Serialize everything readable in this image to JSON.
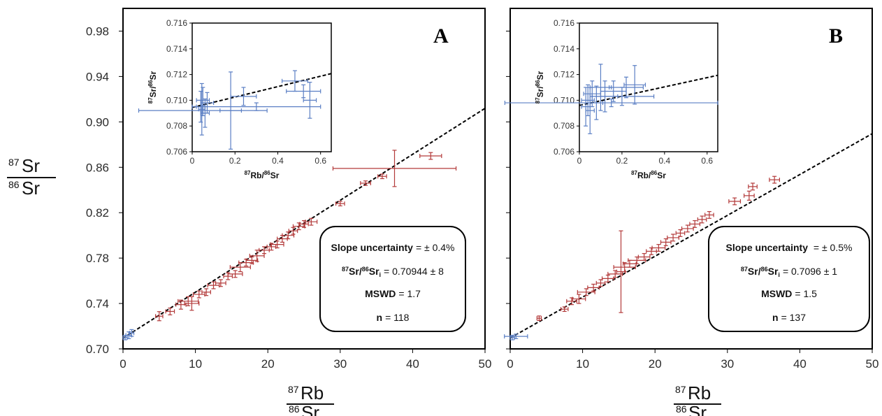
{
  "figure": {
    "y_axis_label": {
      "num_sup": "87",
      "num": "Sr",
      "den_sup": "86",
      "den": "Sr"
    },
    "x_axis_label": {
      "num_sup": "87",
      "num": "Rb",
      "den_sup": "86",
      "den": "Sr"
    },
    "inset_x_label": {
      "sup1": "87",
      "el1": "Rb/",
      "sup2": "86",
      "el2": "Sr"
    },
    "inset_y_label": {
      "sup1": "87",
      "el1": "Sr/",
      "sup2": "86",
      "el2": "Sr"
    }
  },
  "colors": {
    "main_points": "#b33a3a",
    "low_rb_points": "#5b7fc4",
    "isochron": "#000000"
  },
  "chart_data": [
    {
      "panel": "A",
      "type": "scatter",
      "x_ticks": [
        "0",
        "10",
        "20",
        "30",
        "40",
        "50"
      ],
      "y_ticks": [
        "0.70",
        "0.74",
        "0.78",
        "0.82",
        "0.86",
        "0.90",
        "0.94",
        "0.98"
      ],
      "xlim": [
        0,
        50
      ],
      "ylim": [
        0.7,
        1.0
      ],
      "isochron": {
        "intercept": 0.70944,
        "slope": 0.00405
      },
      "stats": {
        "slope_label": "Slope uncertainty",
        "slope_value": "= ± 0.4%",
        "ratio_main": "Sr/",
        "ratio_sup1": "87",
        "ratio_sup2": "86",
        "ratio_tail": "Sr",
        "ratio_sub": "i",
        "ratio_value": "= 0.70944 ± 8",
        "mswd_label": "MSWD",
        "mswd_value": "= 1.7",
        "n_label": "n",
        "n_value": "= 118"
      },
      "inset": {
        "x_ticks": [
          "0",
          "0.2",
          "0.4",
          "0.6"
        ],
        "y_ticks": [
          "0.706",
          "0.708",
          "0.710",
          "0.712",
          "0.714",
          "0.716"
        ],
        "xlim": [
          0,
          0.65
        ],
        "ylim": [
          0.706,
          0.716
        ],
        "isochron": {
          "intercept": 0.70944,
          "slope": 0.00405
        }
      },
      "series": [
        {
          "group": "high_rb",
          "points": [
            [
              5.0,
              0.7288,
              0.5,
              0.004
            ],
            [
              6.5,
              0.733,
              0.6,
              0.003
            ],
            [
              8.0,
              0.739,
              0.7,
              0.004
            ],
            [
              9.0,
              0.742,
              1.4,
              0.004
            ],
            [
              9.5,
              0.74,
              1.0,
              0.006
            ],
            [
              10.5,
              0.748,
              0.8,
              0.003
            ],
            [
              11.5,
              0.75,
              0.6,
              0.003
            ],
            [
              12.5,
              0.756,
              0.8,
              0.003
            ],
            [
              13.5,
              0.758,
              0.7,
              0.003
            ],
            [
              14.5,
              0.764,
              0.6,
              0.003
            ],
            [
              15.5,
              0.766,
              1.0,
              0.003
            ],
            [
              16.2,
              0.772,
              1.4,
              0.004
            ],
            [
              17.0,
              0.776,
              1.0,
              0.003
            ],
            [
              17.8,
              0.778,
              0.8,
              0.003
            ],
            [
              18.5,
              0.782,
              1.0,
              0.005
            ],
            [
              19.5,
              0.787,
              0.7,
              0.003
            ],
            [
              20.5,
              0.79,
              0.6,
              0.003
            ],
            [
              21.3,
              0.792,
              0.9,
              0.003
            ],
            [
              22.0,
              0.797,
              0.7,
              0.003
            ],
            [
              22.8,
              0.8,
              0.8,
              0.003
            ],
            [
              23.5,
              0.804,
              0.6,
              0.003
            ],
            [
              24.3,
              0.808,
              0.8,
              0.003
            ],
            [
              25.0,
              0.81,
              0.6,
              0.003
            ],
            [
              26.0,
              0.812,
              0.8,
              0.003
            ],
            [
              30.0,
              0.828,
              0.6,
              0.002
            ],
            [
              33.5,
              0.846,
              0.7,
              0.002
            ],
            [
              35.8,
              0.852,
              0.6,
              0.002
            ],
            [
              37.5,
              0.859,
              8.5,
              0.016
            ],
            [
              42.5,
              0.87,
              1.5,
              0.003
            ]
          ]
        },
        {
          "group": "low_rb",
          "points": [
            [
              0.3,
              0.71,
              0.3,
              0.002
            ],
            [
              0.8,
              0.712,
              0.4,
              0.003
            ],
            [
              1.2,
              0.714,
              0.3,
              0.003
            ]
          ]
        }
      ],
      "inset_points": [
        [
          0.04,
          0.7095,
          0.02,
          0.0012
        ],
        [
          0.05,
          0.71,
          0.03,
          0.001
        ],
        [
          0.06,
          0.709,
          0.02,
          0.0011
        ],
        [
          0.045,
          0.7093,
          0.015,
          0.002
        ],
        [
          0.07,
          0.7098,
          0.03,
          0.0008
        ],
        [
          0.05,
          0.7092,
          0.3,
          0.0004
        ],
        [
          0.18,
          0.7092,
          0.05,
          0.003
        ],
        [
          0.48,
          0.7115,
          0.06,
          0.0008
        ],
        [
          0.52,
          0.7107,
          0.08,
          0.0005
        ],
        [
          0.55,
          0.71,
          0.03,
          0.0014
        ],
        [
          0.3,
          0.7095,
          0.3,
          0.0003
        ],
        [
          0.24,
          0.7103,
          0.06,
          0.0007
        ]
      ]
    },
    {
      "panel": "B",
      "type": "scatter",
      "x_ticks": [
        "0",
        "10",
        "20",
        "30",
        "40",
        "50"
      ],
      "y_ticks": [],
      "xlim": [
        0,
        50
      ],
      "ylim": [
        0.7,
        1.0
      ],
      "isochron": {
        "intercept": 0.7096,
        "slope": 0.0036
      },
      "stats": {
        "slope_label": "Slope uncertainty",
        "slope_value": " = ± 0.5%",
        "ratio_main": "Sr/",
        "ratio_sup1": "87",
        "ratio_sup2": "86",
        "ratio_tail": "Sr",
        "ratio_sub": "i",
        "ratio_value": "= 0.7096 ± 1",
        "mswd_label": "MSWD",
        "mswd_value": "= 1.5",
        "n_label": "n",
        "n_value": "= 137"
      },
      "inset": {
        "x_ticks": [
          "0",
          "0.2",
          "0.4",
          "0.6"
        ],
        "y_ticks": [
          "0.706",
          "0.708",
          "0.710",
          "0.712",
          "0.714",
          "0.716"
        ],
        "xlim": [
          0,
          0.65
        ],
        "ylim": [
          0.706,
          0.716
        ],
        "isochron": {
          "intercept": 0.7096,
          "slope": 0.0036
        }
      },
      "series": [
        {
          "group": "high_rb",
          "points": [
            [
              4.0,
              0.727,
              0.3,
              0.002
            ],
            [
              7.5,
              0.735,
              0.5,
              0.002
            ],
            [
              8.5,
              0.742,
              0.7,
              0.003
            ],
            [
              9.5,
              0.744,
              0.9,
              0.004
            ],
            [
              10.5,
              0.75,
              1.2,
              0.003
            ],
            [
              11.5,
              0.754,
              0.8,
              0.003
            ],
            [
              12.5,
              0.758,
              0.6,
              0.003
            ],
            [
              13.5,
              0.762,
              0.8,
              0.003
            ],
            [
              14.5,
              0.766,
              1.0,
              0.003
            ],
            [
              15.3,
              0.768,
              0.6,
              0.036
            ],
            [
              15.8,
              0.772,
              1.5,
              0.004
            ],
            [
              16.5,
              0.775,
              0.9,
              0.003
            ],
            [
              17.5,
              0.778,
              1.2,
              0.003
            ],
            [
              18.5,
              0.781,
              0.8,
              0.003
            ],
            [
              19.5,
              0.786,
              0.7,
              0.003
            ],
            [
              20.5,
              0.789,
              0.9,
              0.003
            ],
            [
              21.5,
              0.794,
              0.7,
              0.003
            ],
            [
              22.5,
              0.798,
              0.8,
              0.003
            ],
            [
              23.5,
              0.802,
              0.6,
              0.003
            ],
            [
              24.5,
              0.806,
              0.8,
              0.003
            ],
            [
              25.5,
              0.81,
              0.7,
              0.003
            ],
            [
              26.5,
              0.814,
              0.6,
              0.003
            ],
            [
              27.5,
              0.818,
              0.6,
              0.003
            ],
            [
              31.0,
              0.83,
              0.8,
              0.003
            ],
            [
              33.0,
              0.835,
              0.7,
              0.004
            ],
            [
              33.5,
              0.843,
              0.6,
              0.003
            ],
            [
              36.5,
              0.849,
              0.7,
              0.003
            ]
          ]
        },
        {
          "group": "low_rb",
          "points": [
            [
              0.3,
              0.71,
              0.3,
              0.002
            ],
            [
              0.8,
              0.711,
              1.6,
              0.002
            ]
          ]
        }
      ],
      "inset_points": [
        [
          0.03,
          0.7095,
          0.02,
          0.0015
        ],
        [
          0.04,
          0.71,
          0.03,
          0.0012
        ],
        [
          0.05,
          0.7092,
          0.02,
          0.0018
        ],
        [
          0.06,
          0.7105,
          0.04,
          0.001
        ],
        [
          0.08,
          0.7098,
          0.03,
          0.0013
        ],
        [
          0.1,
          0.711,
          0.05,
          0.0018
        ],
        [
          0.12,
          0.7103,
          0.06,
          0.0012
        ],
        [
          0.16,
          0.7107,
          0.06,
          0.0008
        ],
        [
          0.22,
          0.711,
          0.08,
          0.0008
        ],
        [
          0.26,
          0.7112,
          0.05,
          0.0015
        ],
        [
          0.2,
          0.7103,
          0.15,
          0.0007
        ],
        [
          0.15,
          0.7098,
          0.5,
          0.0003
        ]
      ]
    }
  ]
}
